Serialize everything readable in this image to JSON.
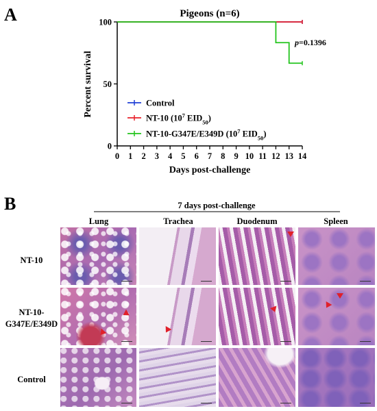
{
  "panel_a_letter": "A",
  "panel_b_letter": "B",
  "chart_data": {
    "type": "line",
    "subtype": "kaplan-meier survival",
    "title": "Pigeons (n=6)",
    "xlabel": "Days post-challenge",
    "ylabel": "Percent survival",
    "xlim": [
      0,
      14
    ],
    "ylim": [
      0,
      100
    ],
    "x_ticks": [
      "0",
      "1",
      "2",
      "3",
      "4",
      "5",
      "6",
      "7",
      "8",
      "9",
      "10",
      "11",
      "12",
      "13",
      "14"
    ],
    "y_ticks": [
      "0",
      "50",
      "100"
    ],
    "annotation": "p=0.1396",
    "annotation_p": "p",
    "annotation_val": "=0.1396",
    "legend_position": "bottom-left",
    "series": [
      {
        "name": "Control",
        "label_main": "Control",
        "label_super": "",
        "label_tail": "",
        "label_sub": "",
        "label_end": "",
        "color": "#1f3fd6",
        "steps": [
          [
            0,
            100
          ],
          [
            14,
            100
          ]
        ]
      },
      {
        "name": "NT-10 (10^7 EID50)",
        "label_main": "NT-10 (10",
        "label_super": "7",
        "label_tail": " EID",
        "label_sub": "50",
        "label_end": ")",
        "color": "#e8202a",
        "steps": [
          [
            0,
            100
          ],
          [
            14,
            100
          ]
        ]
      },
      {
        "name": "NT-10-G347E/E349D (10^7 EID50)",
        "label_main": "NT-10-G347E/E349D (10",
        "label_super": "7",
        "label_tail": " EID",
        "label_sub": "50",
        "label_end": ")",
        "color": "#22c41c",
        "steps": [
          [
            0,
            100
          ],
          [
            12,
            100
          ],
          [
            12,
            83.3
          ],
          [
            13,
            83.3
          ],
          [
            13,
            66.7
          ],
          [
            14,
            66.7
          ]
        ]
      }
    ]
  },
  "histology": {
    "header": "7 days post-challenge",
    "columns": [
      "Lung",
      "Trachea",
      "Duodenum",
      "Spleen"
    ],
    "rows": [
      "NT-10",
      "NT-10-\nG347E/E349D",
      "Control"
    ],
    "row_line1": [
      "NT-10",
      "NT-10-",
      "Control"
    ],
    "row_line2": [
      "",
      "G347E/E349D",
      ""
    ],
    "lesion_marker_color": "#e0202a"
  }
}
